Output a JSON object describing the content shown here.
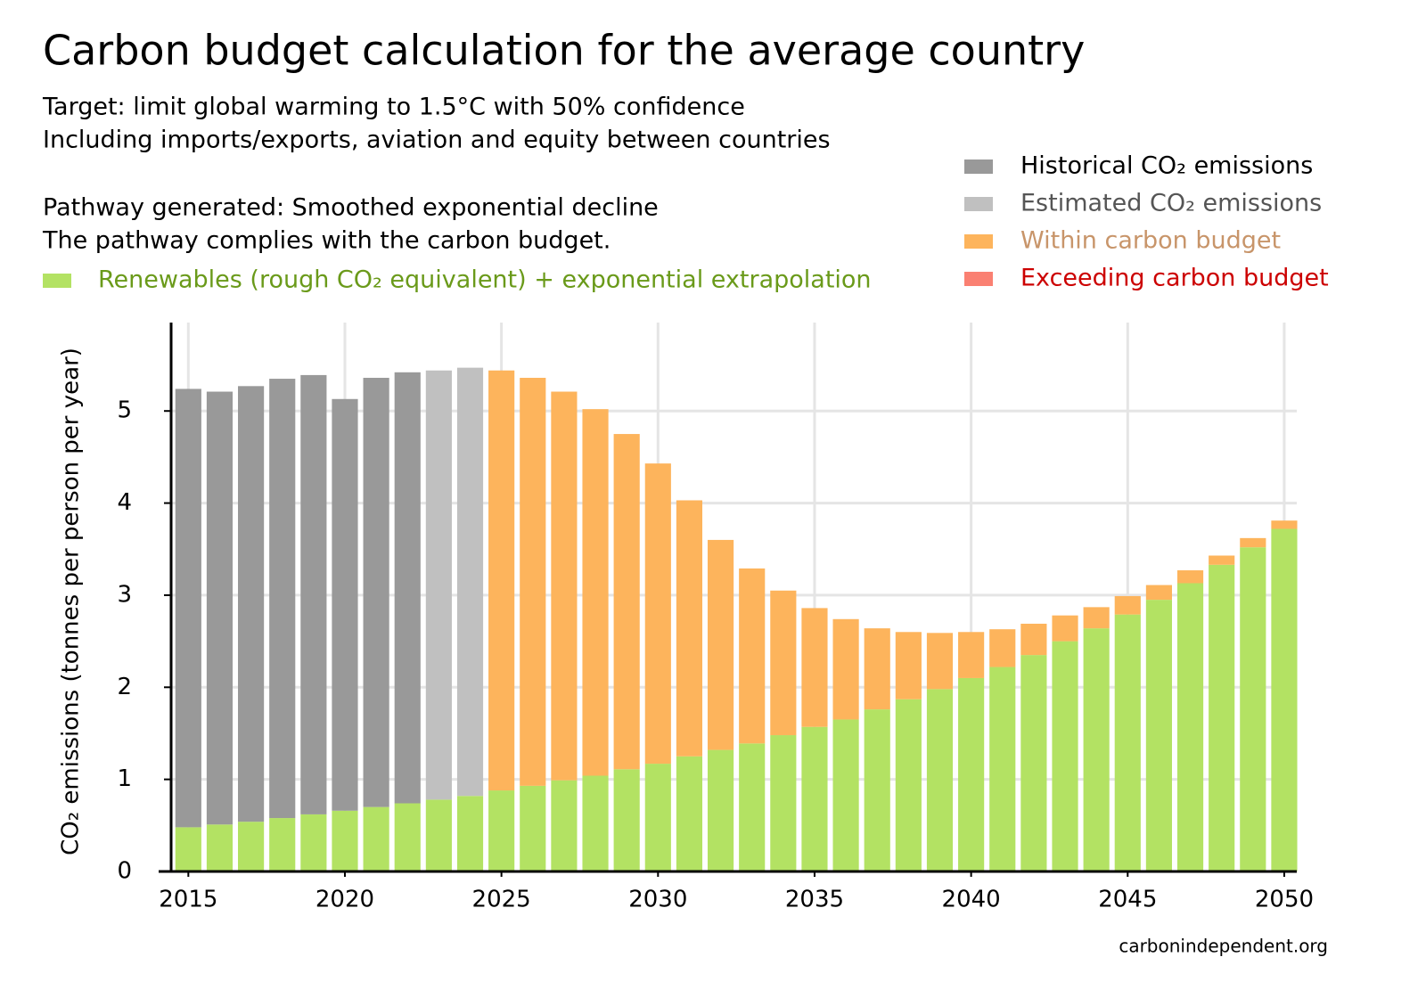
{
  "chart_data": {
    "type": "stacked_bar",
    "title": "Carbon budget calculation for the average country",
    "subtitle": [
      "Target: limit global warming to 1.5°C with 50% confidence",
      "Including imports/exports, aviation and equity between countries"
    ],
    "annotations": [
      "Pathway generated: Smoothed exponential decline",
      "The pathway complies with the carbon budget."
    ],
    "y_label": "CO₂ emissions (tonnes per person per year)",
    "source": "carbonindependent.org",
    "x": [
      2015,
      2016,
      2017,
      2018,
      2019,
      2020,
      2021,
      2022,
      2023,
      2024,
      2025,
      2026,
      2027,
      2028,
      2029,
      2030,
      2031,
      2032,
      2033,
      2034,
      2035,
      2036,
      2037,
      2038,
      2039,
      2040,
      2041,
      2042,
      2043,
      2044,
      2045,
      2046,
      2047,
      2048,
      2049,
      2050
    ],
    "series": [
      {
        "name": "Renewables (rough CO₂ equivalent) + exponential extrapolation",
        "color": "#b3e263",
        "text_color": "#6a9a1a",
        "values": [
          0.48,
          0.51,
          0.54,
          0.58,
          0.62,
          0.66,
          0.7,
          0.74,
          0.78,
          0.82,
          0.88,
          0.93,
          0.99,
          1.04,
          1.11,
          1.17,
          1.25,
          1.32,
          1.39,
          1.48,
          1.57,
          1.65,
          1.76,
          1.87,
          1.98,
          2.1,
          2.22,
          2.35,
          2.5,
          2.64,
          2.79,
          2.95,
          3.13,
          3.33,
          3.52,
          3.72
        ]
      },
      {
        "name": "Historical CO₂ emissions",
        "color": "#999999",
        "text_color": "#000000",
        "values": [
          4.76,
          4.7,
          4.73,
          4.77,
          4.77,
          4.47,
          4.66,
          4.68,
          null,
          null,
          null,
          null,
          null,
          null,
          null,
          null,
          null,
          null,
          null,
          null,
          null,
          null,
          null,
          null,
          null,
          null,
          null,
          null,
          null,
          null,
          null,
          null,
          null,
          null,
          null,
          null
        ]
      },
      {
        "name": "Estimated CO₂ emissions",
        "color": "#c0c0c0",
        "text_color": "#555555",
        "values": [
          null,
          null,
          null,
          null,
          null,
          null,
          null,
          null,
          4.66,
          4.65,
          null,
          null,
          null,
          null,
          null,
          null,
          null,
          null,
          null,
          null,
          null,
          null,
          null,
          null,
          null,
          null,
          null,
          null,
          null,
          null,
          null,
          null,
          null,
          null,
          null,
          null
        ]
      },
      {
        "name": "Within carbon budget",
        "color": "#fdb45c",
        "text_color": "#c8956a",
        "values": [
          null,
          null,
          null,
          null,
          null,
          null,
          null,
          null,
          null,
          null,
          4.56,
          4.43,
          4.22,
          3.98,
          3.64,
          3.26,
          2.78,
          2.28,
          1.9,
          1.57,
          1.29,
          1.09,
          0.88,
          0.73,
          0.61,
          0.5,
          0.41,
          0.34,
          0.28,
          0.23,
          0.2,
          0.16,
          0.14,
          0.1,
          0.1,
          0.09
        ]
      },
      {
        "name": "Exceeding carbon budget",
        "color": "#fa8072",
        "text_color": "#cc0000",
        "values": [
          null,
          null,
          null,
          null,
          null,
          null,
          null,
          null,
          null,
          null,
          null,
          null,
          null,
          null,
          null,
          null,
          null,
          null,
          null,
          null,
          null,
          null,
          null,
          null,
          null,
          null,
          null,
          null,
          null,
          null,
          null,
          null,
          null,
          null,
          null,
          null
        ]
      }
    ],
    "xlim": [
      2014.45,
      2050.4
    ],
    "xticks": [
      2015,
      2020,
      2025,
      2030,
      2035,
      2040,
      2045,
      2050
    ],
    "ylim": [
      0,
      5.96
    ],
    "yticks": [
      0,
      1,
      2,
      3,
      4,
      5
    ],
    "grid": true
  }
}
